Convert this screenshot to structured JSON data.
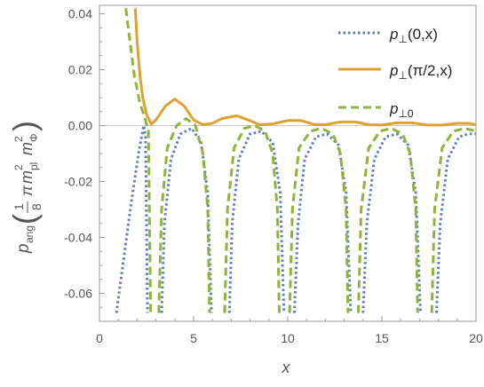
{
  "chart_data": {
    "type": "line",
    "xlabel": "x",
    "ylabel": "p_ang((1/8) π m_pl² m_Φ²)",
    "ylabel_parts": {
      "p": "p",
      "ang": "ang",
      "open": "(",
      "num": "1",
      "den": "8",
      "pi": "π",
      "m1": "m",
      "pl": "pl",
      "two1": "2",
      "m2": "m",
      "phi": "Φ",
      "two2": "2",
      "close": ")"
    },
    "xlim": [
      0,
      20
    ],
    "ylim": [
      -0.07,
      0.043
    ],
    "x_ticks": [
      0,
      5,
      10,
      15,
      20
    ],
    "x_tick_labels": [
      "0",
      "5",
      "10",
      "15",
      "20"
    ],
    "y_ticks": [
      0.04,
      0.02,
      0.0,
      -0.02,
      -0.04,
      -0.06
    ],
    "y_tick_labels": [
      "0.04",
      "0.02",
      "0.00",
      "-0.02",
      "-0.04",
      "-0.06"
    ],
    "grid": false,
    "legend_position": "top-right",
    "series": [
      {
        "name": "p⊥(0,x)",
        "legend": {
          "p": "p",
          "sub": "⊥",
          "arg": "(0,x)"
        },
        "color": "#5b7fbf",
        "style": "dotted",
        "points": [
          [
            0.9,
            -0.067
          ],
          [
            1.3,
            -0.047
          ],
          [
            1.7,
            -0.027
          ],
          [
            2.1,
            -0.009
          ],
          [
            2.35,
            0.0
          ],
          [
            2.45,
            -0.004
          ],
          [
            2.55,
            -0.067
          ],
          null,
          [
            3.3,
            -0.067
          ],
          [
            3.45,
            -0.035
          ],
          [
            3.8,
            -0.012
          ],
          [
            4.3,
            -0.003
          ],
          [
            4.9,
            -0.001
          ],
          [
            5.4,
            -0.006
          ],
          [
            5.75,
            -0.024
          ],
          [
            5.95,
            -0.067
          ],
          null,
          [
            6.9,
            -0.067
          ],
          [
            7.05,
            -0.035
          ],
          [
            7.4,
            -0.012
          ],
          [
            8.0,
            -0.003
          ],
          [
            8.6,
            -0.002
          ],
          [
            9.2,
            -0.006
          ],
          [
            9.6,
            -0.024
          ],
          [
            9.8,
            -0.067
          ],
          null,
          [
            10.35,
            -0.067
          ],
          [
            10.55,
            -0.035
          ],
          [
            10.9,
            -0.012
          ],
          [
            11.5,
            -0.004
          ],
          [
            12.1,
            -0.003
          ],
          [
            12.7,
            -0.007
          ],
          [
            13.1,
            -0.024
          ],
          [
            13.35,
            -0.067
          ],
          null,
          [
            14.0,
            -0.067
          ],
          [
            14.2,
            -0.035
          ],
          [
            14.6,
            -0.012
          ],
          [
            15.2,
            -0.004
          ],
          [
            15.8,
            -0.003
          ],
          [
            16.4,
            -0.007
          ],
          [
            16.8,
            -0.024
          ],
          [
            17.05,
            -0.067
          ],
          null,
          [
            17.9,
            -0.067
          ],
          [
            18.1,
            -0.035
          ],
          [
            18.5,
            -0.012
          ],
          [
            19.1,
            -0.004
          ],
          [
            19.6,
            -0.003
          ],
          [
            20.0,
            -0.003
          ]
        ]
      },
      {
        "name": "p⊥(π/2,x)",
        "legend": {
          "p": "p",
          "sub": "⊥",
          "arg": "(π/2,x)"
        },
        "color": "#e0a030",
        "style": "solid",
        "points": [
          [
            1.9,
            0.042
          ],
          [
            2.0,
            0.03
          ],
          [
            2.15,
            0.018
          ],
          [
            2.3,
            0.01
          ],
          [
            2.5,
            0.004
          ],
          [
            2.75,
            0.0005
          ],
          [
            3.0,
            0.002
          ],
          [
            3.5,
            0.007
          ],
          [
            4.0,
            0.0095
          ],
          [
            4.5,
            0.007
          ],
          [
            5.0,
            0.002
          ],
          [
            5.5,
            0.0003
          ],
          [
            6.0,
            0.0008
          ],
          [
            6.5,
            0.0025
          ],
          [
            7.3,
            0.0035
          ],
          [
            7.9,
            0.002
          ],
          [
            8.5,
            0.0003
          ],
          [
            9.2,
            0.0006
          ],
          [
            10.0,
            0.0018
          ],
          [
            10.7,
            0.0018
          ],
          [
            11.4,
            0.0004
          ],
          [
            12.0,
            0.0003
          ],
          [
            12.8,
            0.0013
          ],
          [
            13.6,
            0.0013
          ],
          [
            14.3,
            0.0003
          ],
          [
            15.0,
            0.0002
          ],
          [
            15.8,
            0.001
          ],
          [
            16.6,
            0.001
          ],
          [
            17.4,
            0.0002
          ],
          [
            18.2,
            0.0002
          ],
          [
            19.0,
            0.0008
          ],
          [
            19.6,
            0.0008
          ],
          [
            20.0,
            0.0003
          ]
        ]
      },
      {
        "name": "p⊥0",
        "legend": {
          "p": "p",
          "sub": "⊥0",
          "arg": ""
        },
        "color": "#8fb43a",
        "style": "dashed",
        "points": [
          [
            1.4,
            0.042
          ],
          [
            1.6,
            0.031
          ],
          [
            1.85,
            0.018
          ],
          [
            2.15,
            0.008
          ],
          [
            2.4,
            0.003
          ],
          [
            2.6,
            -0.002
          ],
          [
            2.72,
            -0.067
          ],
          null,
          [
            3.15,
            -0.067
          ],
          [
            3.3,
            -0.03
          ],
          [
            3.6,
            -0.008
          ],
          [
            4.1,
            0.0
          ],
          [
            4.6,
            0.0025
          ],
          [
            5.1,
            0.0
          ],
          [
            5.5,
            -0.01
          ],
          [
            5.75,
            -0.03
          ],
          [
            5.85,
            -0.067
          ],
          null,
          [
            6.65,
            -0.067
          ],
          [
            6.8,
            -0.03
          ],
          [
            7.15,
            -0.008
          ],
          [
            7.7,
            -0.001
          ],
          [
            8.25,
            0.0
          ],
          [
            8.8,
            -0.002
          ],
          [
            9.2,
            -0.01
          ],
          [
            9.45,
            -0.03
          ],
          [
            9.55,
            -0.067
          ],
          null,
          [
            10.1,
            -0.067
          ],
          [
            10.25,
            -0.03
          ],
          [
            10.6,
            -0.008
          ],
          [
            11.2,
            -0.002
          ],
          [
            11.8,
            -0.001
          ],
          [
            12.4,
            -0.003
          ],
          [
            12.8,
            -0.01
          ],
          [
            13.1,
            -0.03
          ],
          [
            13.2,
            -0.067
          ],
          null,
          [
            13.75,
            -0.067
          ],
          [
            13.9,
            -0.03
          ],
          [
            14.3,
            -0.008
          ],
          [
            14.9,
            -0.002
          ],
          [
            15.5,
            -0.001
          ],
          [
            16.1,
            -0.003
          ],
          [
            16.5,
            -0.01
          ],
          [
            16.8,
            -0.03
          ],
          [
            16.9,
            -0.067
          ],
          null,
          [
            17.65,
            -0.067
          ],
          [
            17.8,
            -0.03
          ],
          [
            18.2,
            -0.008
          ],
          [
            18.8,
            -0.002
          ],
          [
            19.4,
            -0.001
          ],
          [
            20.0,
            -0.002
          ]
        ]
      }
    ]
  }
}
